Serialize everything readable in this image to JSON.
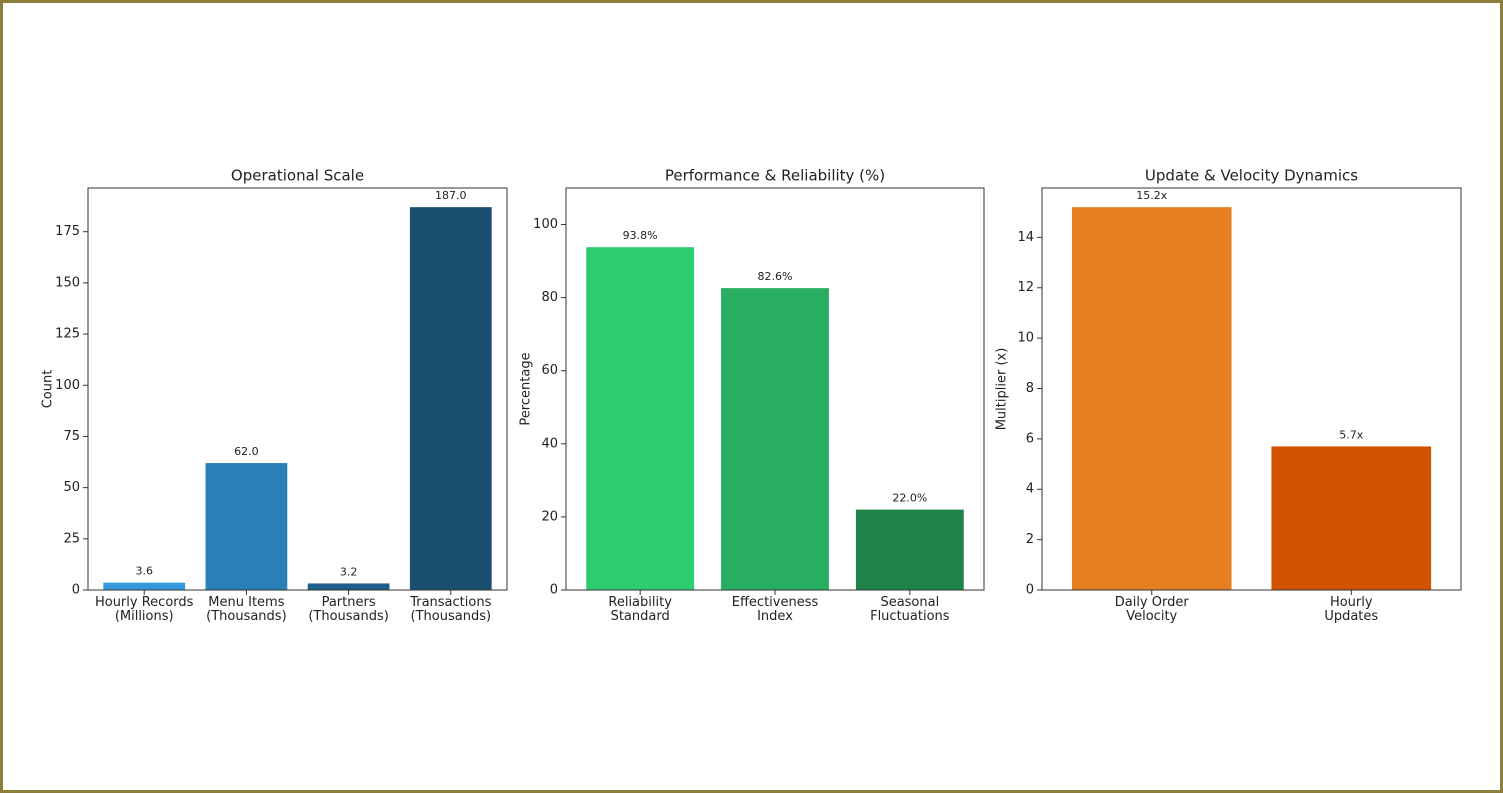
{
  "chart_data": [
    {
      "type": "bar",
      "title": "Operational Scale",
      "ylabel": "Count",
      "categories": [
        "Hourly Records\n(Millions)",
        "Menu Items\n(Thousands)",
        "Partners\n(Thousands)",
        "Transactions\n(Thousands)"
      ],
      "values": [
        3.6,
        62,
        3.2,
        187
      ],
      "value_labels": [
        "3.6",
        "62.0",
        "3.2",
        "187.0"
      ],
      "colors": [
        "#3498db",
        "#2980b9",
        "#1f5f8b",
        "#1b4f72"
      ],
      "ylim": [
        0,
        196.35
      ],
      "yticks": [
        0,
        25,
        50,
        75,
        100,
        125,
        150,
        175
      ]
    },
    {
      "type": "bar",
      "title": "Performance & Reliability (%)",
      "ylabel": "Percentage",
      "categories": [
        "Reliability\nStandard",
        "Effectiveness\nIndex",
        "Seasonal\nFluctuations"
      ],
      "values": [
        93.8,
        82.6,
        22.0
      ],
      "value_labels": [
        "93.8%",
        "82.6%",
        "22.0%"
      ],
      "colors": [
        "#2ecc71",
        "#27ae60",
        "#1e8449"
      ],
      "ylim": [
        0,
        110
      ],
      "yticks": [
        0,
        20,
        40,
        60,
        80,
        100
      ]
    },
    {
      "type": "bar",
      "title": "Update & Velocity Dynamics",
      "ylabel": "Multiplier (x)",
      "categories": [
        "Daily Order\nVelocity",
        "Hourly\nUpdates"
      ],
      "values": [
        15.2,
        5.7
      ],
      "value_labels": [
        "15.2x",
        "5.7x"
      ],
      "colors": [
        "#e67e22",
        "#d35400"
      ],
      "ylim": [
        0,
        15.96
      ],
      "yticks": [
        0,
        2,
        4,
        6,
        8,
        10,
        12,
        14
      ]
    }
  ]
}
